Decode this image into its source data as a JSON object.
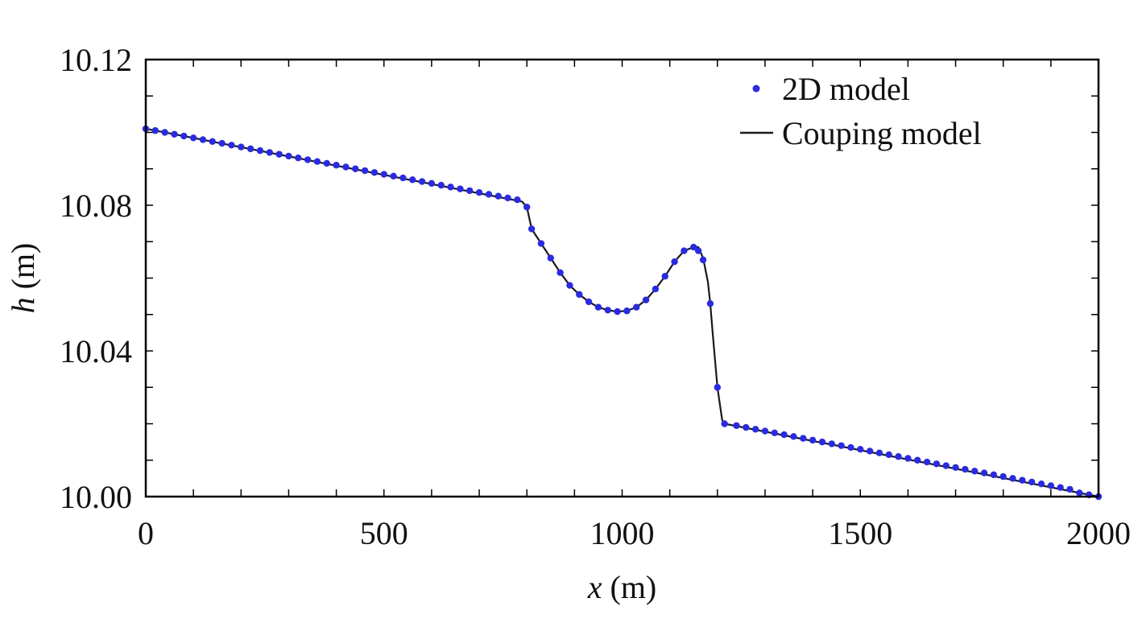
{
  "chart_data": {
    "type": "line",
    "title": "",
    "xlabel": {
      "var": "x",
      "unit": " (m)"
    },
    "ylabel": {
      "var": "h",
      "unit": " (m)"
    },
    "xlim": [
      0,
      2000
    ],
    "ylim": [
      10.0,
      10.12
    ],
    "xticks": [
      0,
      500,
      1000,
      1500,
      2000
    ],
    "xtick_labels": [
      "0",
      "500",
      "1000",
      "1500",
      "2000"
    ],
    "yticks": [
      10.0,
      10.04,
      10.08,
      10.12
    ],
    "ytick_labels": [
      "10.00",
      "10.04",
      "10.08",
      "10.12"
    ],
    "grid": false,
    "legend_position": "top-right",
    "colors": {
      "scatter": "#2a2ae0",
      "line": "#1a1a1a",
      "axis": "#000000"
    },
    "series": [
      {
        "name": "2D model",
        "style": "markers",
        "x": [
          0,
          20,
          40,
          60,
          80,
          100,
          120,
          140,
          160,
          180,
          200,
          220,
          240,
          260,
          280,
          300,
          320,
          340,
          360,
          380,
          400,
          420,
          440,
          460,
          480,
          500,
          520,
          540,
          560,
          580,
          600,
          620,
          640,
          660,
          680,
          700,
          720,
          740,
          760,
          780,
          800,
          810,
          830,
          850,
          870,
          890,
          910,
          930,
          950,
          970,
          990,
          1010,
          1030,
          1050,
          1070,
          1090,
          1110,
          1130,
          1150,
          1160,
          1170,
          1185,
          1200,
          1215,
          1240,
          1260,
          1280,
          1300,
          1320,
          1340,
          1360,
          1380,
          1400,
          1420,
          1440,
          1460,
          1480,
          1500,
          1520,
          1540,
          1560,
          1580,
          1600,
          1620,
          1640,
          1660,
          1680,
          1700,
          1720,
          1740,
          1760,
          1780,
          1800,
          1820,
          1840,
          1860,
          1880,
          1900,
          1920,
          1940,
          1960,
          1980,
          2000
        ],
        "y": [
          10.101,
          10.1005,
          10.1,
          10.0995,
          10.099,
          10.0985,
          10.098,
          10.0975,
          10.097,
          10.0965,
          10.096,
          10.0955,
          10.095,
          10.0945,
          10.094,
          10.0935,
          10.093,
          10.0925,
          10.092,
          10.0915,
          10.091,
          10.0905,
          10.09,
          10.0895,
          10.089,
          10.0885,
          10.088,
          10.0875,
          10.087,
          10.0865,
          10.086,
          10.0855,
          10.085,
          10.0845,
          10.084,
          10.0835,
          10.083,
          10.0825,
          10.082,
          10.0815,
          10.0795,
          10.0735,
          10.0695,
          10.0655,
          10.0615,
          10.058,
          10.0555,
          10.0535,
          10.052,
          10.0512,
          10.0508,
          10.051,
          10.052,
          10.054,
          10.057,
          10.0605,
          10.0645,
          10.0675,
          10.0685,
          10.0675,
          10.065,
          10.053,
          10.03,
          10.02,
          10.0195,
          10.019,
          10.0185,
          10.018,
          10.0175,
          10.017,
          10.0165,
          10.016,
          10.0155,
          10.015,
          10.0145,
          10.014,
          10.0135,
          10.013,
          10.0125,
          10.012,
          10.0115,
          10.011,
          10.0105,
          10.01,
          10.0095,
          10.009,
          10.0085,
          10.008,
          10.0075,
          10.007,
          10.0065,
          10.006,
          10.0055,
          10.005,
          10.0045,
          10.004,
          10.0035,
          10.003,
          10.0025,
          10.002,
          10.001,
          10.0005,
          10.0
        ]
      },
      {
        "name": "Couping model",
        "style": "line",
        "x": [
          0,
          790,
          800,
          810,
          830,
          850,
          870,
          890,
          910,
          930,
          950,
          970,
          990,
          1010,
          1030,
          1050,
          1070,
          1090,
          1110,
          1130,
          1150,
          1160,
          1170,
          1180,
          1185,
          1190,
          1200,
          1210,
          1215,
          2000
        ],
        "y": [
          10.101,
          10.081,
          10.0795,
          10.0735,
          10.0695,
          10.0655,
          10.0615,
          10.058,
          10.0555,
          10.0535,
          10.052,
          10.0512,
          10.0508,
          10.051,
          10.052,
          10.054,
          10.057,
          10.0605,
          10.0645,
          10.0675,
          10.0685,
          10.0685,
          10.0655,
          10.059,
          10.053,
          10.045,
          10.03,
          10.021,
          10.02,
          10.0
        ]
      }
    ]
  }
}
